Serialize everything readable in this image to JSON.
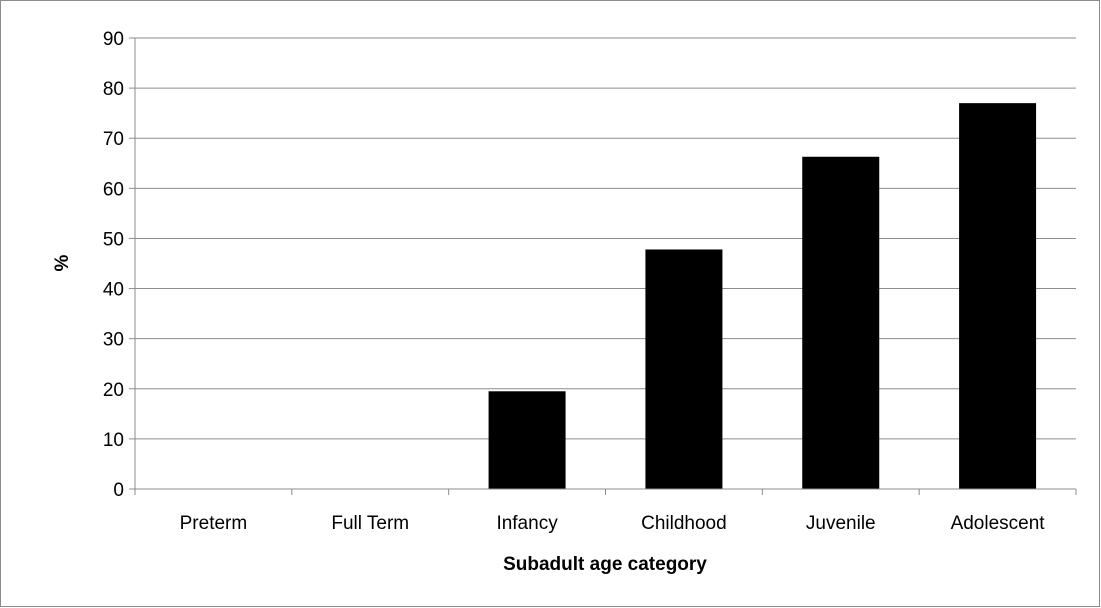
{
  "chart_data": {
    "type": "bar",
    "xlabel": "Subadult age category",
    "ylabel": "%",
    "categories": [
      "Preterm",
      "Full Term",
      "Infancy",
      "Childhood",
      "Juvenile",
      "Adolescent"
    ],
    "values": [
      0,
      0,
      19.5,
      47.8,
      66.3,
      77.0
    ],
    "ylim": [
      0,
      90
    ],
    "yticks": [
      "0",
      "10",
      "20",
      "30",
      "40",
      "50",
      "60",
      "70",
      "80",
      "90"
    ],
    "grid": true,
    "legend": "none",
    "bar_color": "#000000",
    "grid_color": "#8c8c8c"
  }
}
